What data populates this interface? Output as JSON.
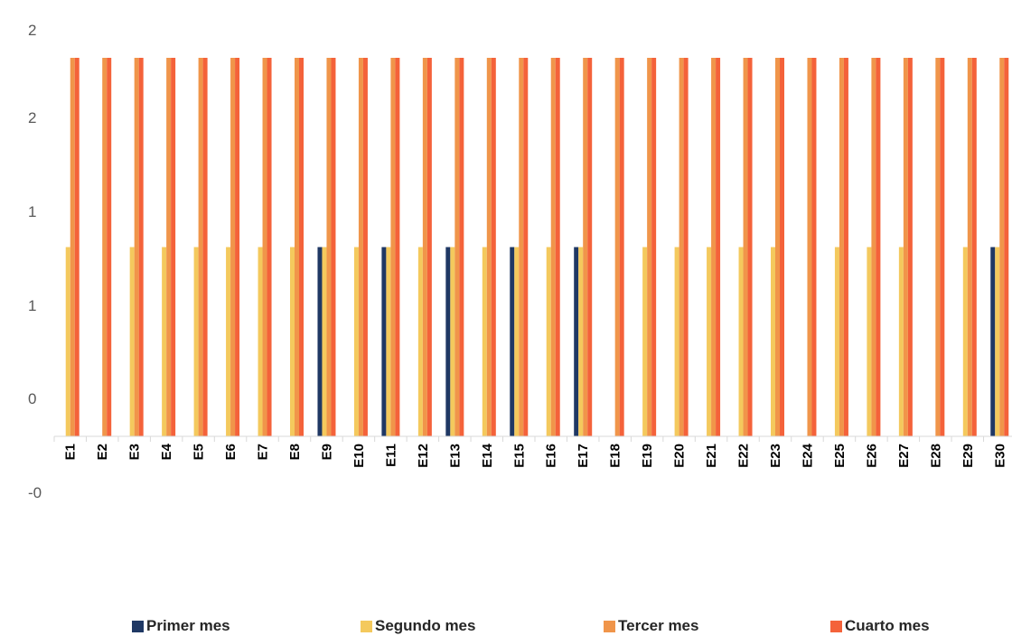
{
  "chart_data": {
    "type": "bar",
    "categories": [
      "E1",
      "E2",
      "E3",
      "E4",
      "E5",
      "E6",
      "E7",
      "E8",
      "E9",
      "E10",
      "E11",
      "E12",
      "E13",
      "E14",
      "E15",
      "E16",
      "E17",
      "E18",
      "E19",
      "E20",
      "E21",
      "E22",
      "E23",
      "E24",
      "E25",
      "E26",
      "E27",
      "E28",
      "E29",
      "E30"
    ],
    "series": [
      {
        "name": "Primer mes",
        "color": "#1f3864",
        "values": [
          0,
          0,
          0,
          0,
          0,
          0,
          0,
          0,
          1,
          0,
          1,
          0,
          1,
          0,
          1,
          0,
          1,
          0,
          0,
          0,
          0,
          0,
          0,
          0,
          0,
          0,
          0,
          0,
          0,
          1
        ]
      },
      {
        "name": "Segundo mes",
        "color": "#f4c95d",
        "values": [
          1,
          0,
          1,
          1,
          1,
          1,
          1,
          1,
          1,
          1,
          1,
          1,
          1,
          1,
          1,
          1,
          1,
          0,
          1,
          1,
          1,
          1,
          1,
          0,
          1,
          1,
          1,
          0,
          1,
          1
        ]
      },
      {
        "name": "Tercer mes",
        "color": "#f0954a",
        "values": [
          2,
          2,
          2,
          2,
          2,
          2,
          2,
          2,
          2,
          2,
          2,
          2,
          2,
          2,
          2,
          2,
          2,
          2,
          2,
          2,
          2,
          2,
          2,
          2,
          2,
          2,
          2,
          2,
          2,
          2
        ]
      },
      {
        "name": "Cuarto mes",
        "color": "#f4623a",
        "values": [
          2,
          2,
          2,
          2,
          2,
          2,
          2,
          2,
          2,
          2,
          2,
          2,
          2,
          2,
          2,
          2,
          2,
          2,
          2,
          2,
          2,
          2,
          2,
          2,
          2,
          2,
          2,
          2,
          2,
          2
        ]
      }
    ],
    "yticks": [
      "2",
      "2",
      "1",
      "1",
      "0",
      "-0"
    ],
    "ylim": [
      0,
      2
    ],
    "grid": false,
    "legend_position": "bottom",
    "title": "",
    "xlabel": "",
    "ylabel": ""
  }
}
